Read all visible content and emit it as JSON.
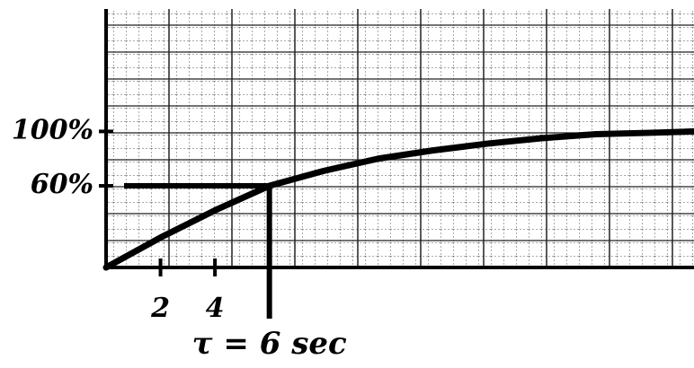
{
  "chart_data": {
    "type": "line",
    "x": [
      0,
      2,
      4,
      6,
      8,
      10,
      12,
      14,
      16,
      18,
      20,
      21.6
    ],
    "series": [
      {
        "color": "#000000",
        "values": [
          0,
          22,
          42,
          60,
          71,
          80,
          86,
          91,
          95,
          98,
          99,
          100
        ]
      }
    ],
    "xlim": [
      0,
      21.6
    ],
    "ylim": [
      0,
      190
    ],
    "xticks": [
      2,
      4
    ],
    "yticks": [
      {
        "value": 60,
        "label": "60%"
      },
      {
        "value": 100,
        "label": "100%"
      }
    ],
    "grid": true,
    "annotation": {
      "text": "τ = 6 sec",
      "x": 6,
      "y": 60
    }
  }
}
